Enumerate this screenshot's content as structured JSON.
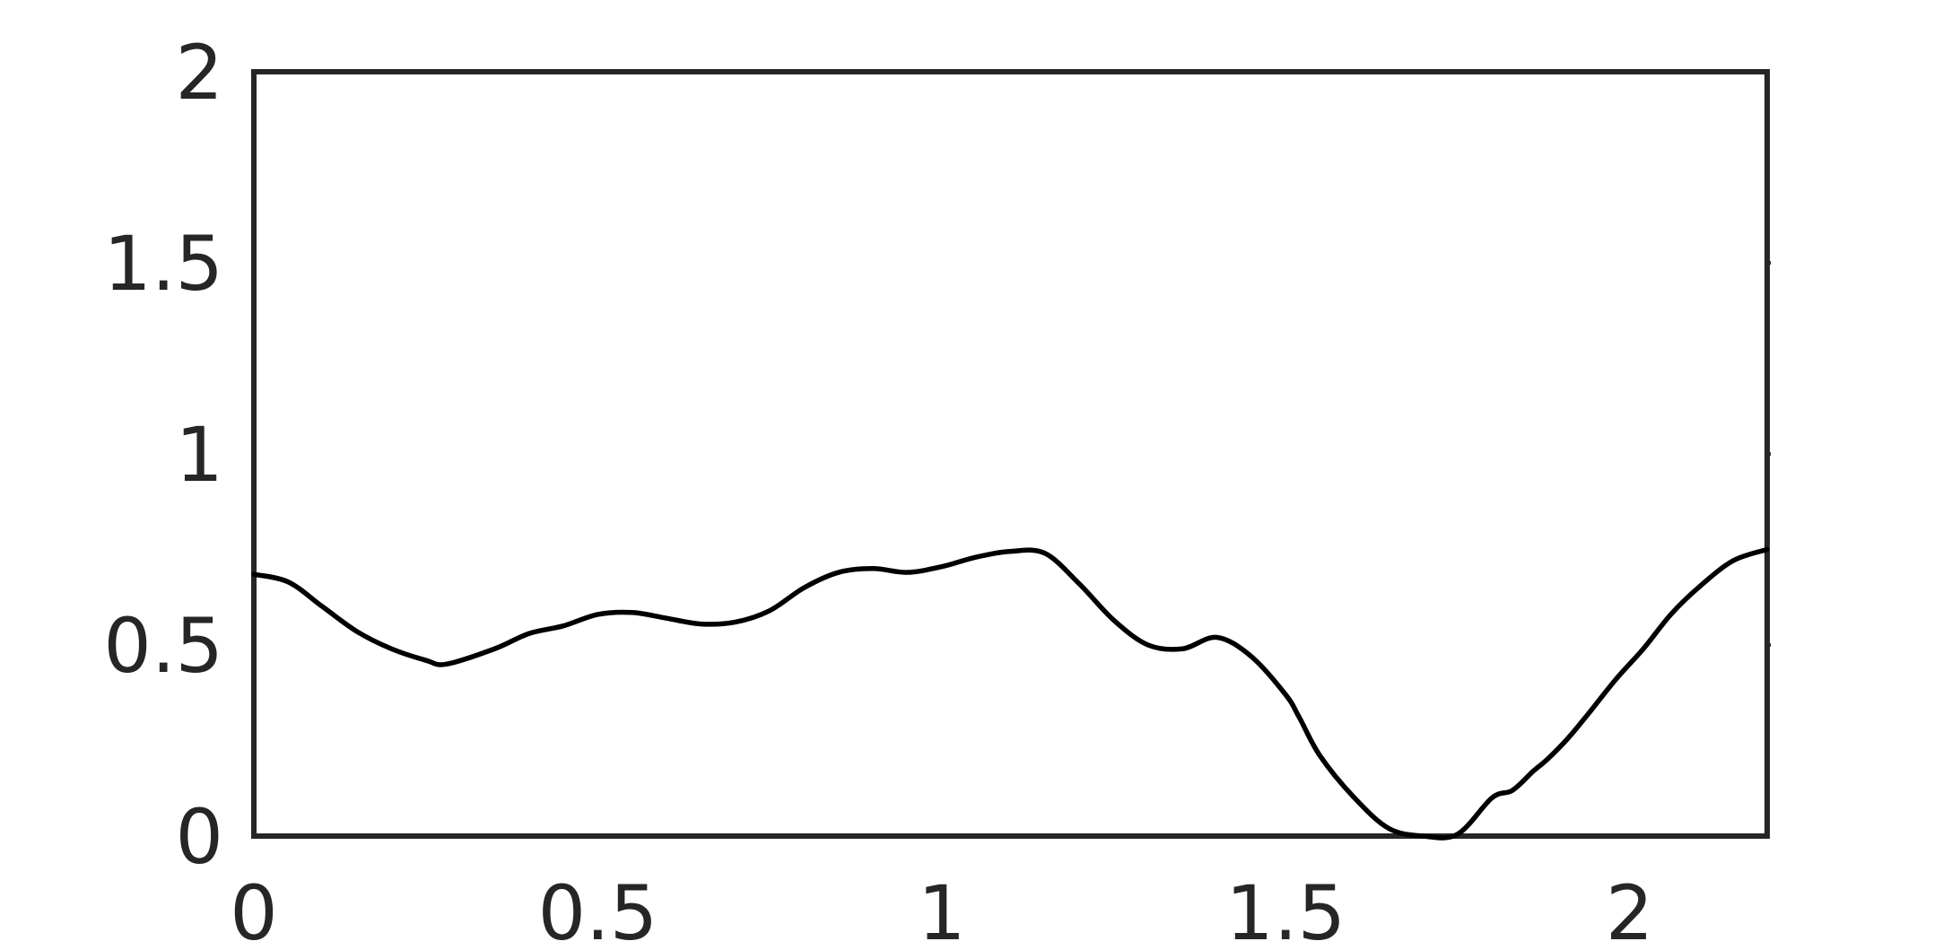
{
  "chart_data": {
    "type": "line",
    "title": "",
    "xlabel": "",
    "ylabel": "",
    "xlim": [
      0,
      2.2
    ],
    "ylim": [
      0,
      2
    ],
    "grid": false,
    "legend": "none",
    "x_ticks": [
      {
        "value": 0,
        "label": "0"
      },
      {
        "value": 0.5,
        "label": "0.5"
      },
      {
        "value": 1,
        "label": "1"
      },
      {
        "value": 1.5,
        "label": "1.5"
      },
      {
        "value": 2,
        "label": "2"
      }
    ],
    "y_ticks": [
      {
        "value": 0,
        "label": "0"
      },
      {
        "value": 0.5,
        "label": "0.5"
      },
      {
        "value": 1,
        "label": "1"
      },
      {
        "value": 1.5,
        "label": "1.5"
      },
      {
        "value": 2,
        "label": "2"
      }
    ],
    "series": [
      {
        "color": "#000000",
        "x": [
          0,
          0.05,
          0.1,
          0.15,
          0.2,
          0.25,
          0.28,
          0.35,
          0.4,
          0.45,
          0.5,
          0.55,
          0.6,
          0.65,
          0.7,
          0.75,
          0.8,
          0.85,
          0.9,
          0.95,
          1.0,
          1.05,
          1.1,
          1.15,
          1.2,
          1.25,
          1.3,
          1.35,
          1.4,
          1.45,
          1.5,
          1.52,
          1.55,
          1.6,
          1.65,
          1.7,
          1.75,
          1.8,
          1.83,
          1.86,
          1.88,
          1.91,
          1.94,
          1.98,
          2.02,
          2.06,
          2.1,
          2.15,
          2.2
        ],
        "y": [
          0.685,
          0.665,
          0.6,
          0.535,
          0.49,
          0.46,
          0.45,
          0.49,
          0.53,
          0.55,
          0.58,
          0.585,
          0.57,
          0.555,
          0.56,
          0.59,
          0.65,
          0.69,
          0.7,
          0.69,
          0.705,
          0.73,
          0.745,
          0.74,
          0.66,
          0.565,
          0.5,
          0.49,
          0.52,
          0.47,
          0.37,
          0.31,
          0.21,
          0.1,
          0.02,
          0.0,
          0.005,
          0.1,
          0.12,
          0.17,
          0.2,
          0.255,
          0.32,
          0.41,
          0.49,
          0.58,
          0.65,
          0.72,
          0.75
        ]
      }
    ]
  }
}
